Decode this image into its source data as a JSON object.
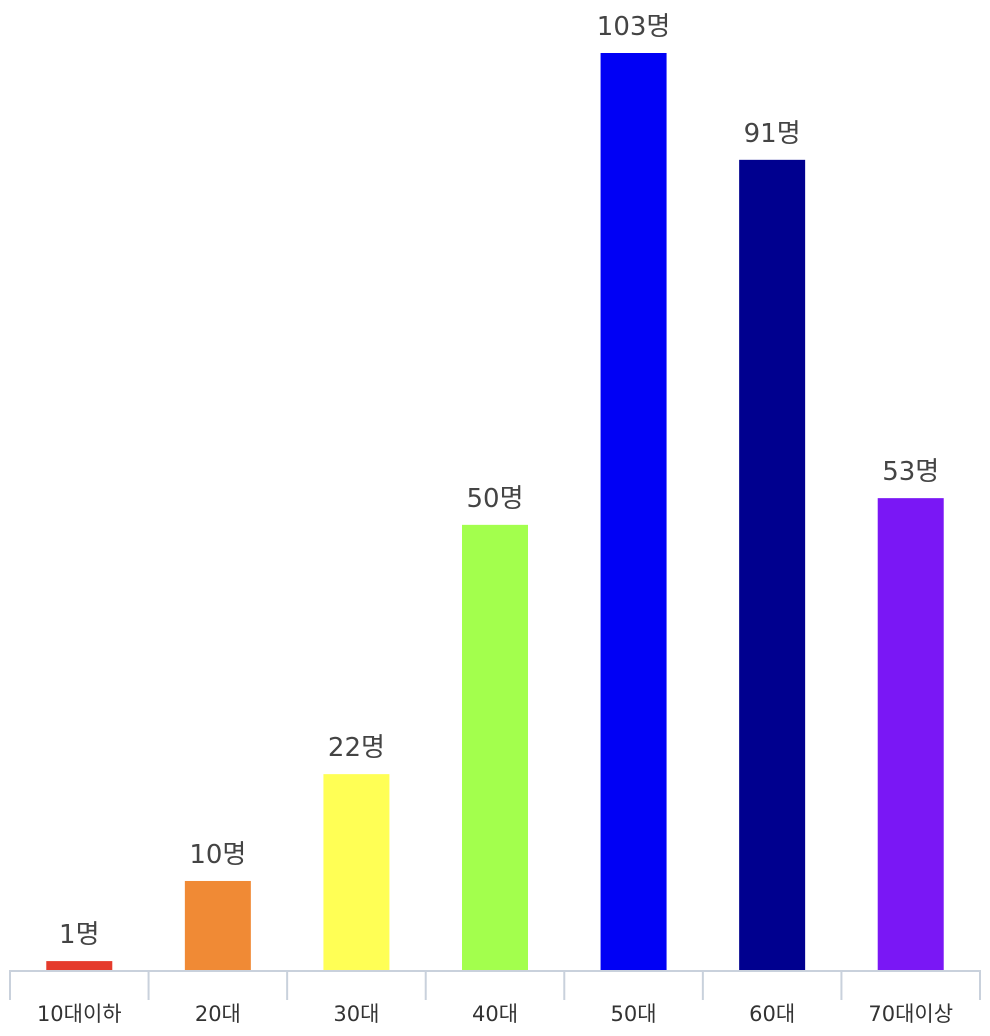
{
  "chart_data": {
    "type": "bar",
    "categories": [
      "10대이하",
      "20대",
      "30대",
      "40대",
      "50대",
      "60대",
      "70대이상"
    ],
    "values": [
      1,
      10,
      22,
      50,
      103,
      91,
      53
    ],
    "data_labels": [
      "1명",
      "10명",
      "22명",
      "50명",
      "103명",
      "91명",
      "53명"
    ],
    "colors": [
      "#e53b2c",
      "#f08a35",
      "#ffff55",
      "#a3ff4d",
      "#0000f5",
      "#00008f",
      "#7a17f5"
    ],
    "title": "",
    "xlabel": "",
    "ylabel": "",
    "ylim": [
      0,
      103
    ],
    "grid": false,
    "legend": "none"
  }
}
